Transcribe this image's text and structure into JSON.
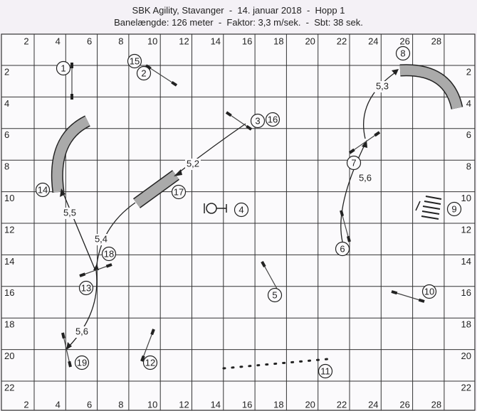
{
  "header": {
    "title": "SBK Agility, Stavanger  -  14. januar 2018  -  Hopp 1",
    "subtitle": "Banelængde: 126 meter  -  Faktor: 3,3 m/sek.  -  Sbt: 38 sek."
  },
  "grid": {
    "x_labels": [
      2,
      4,
      6,
      8,
      10,
      12,
      14,
      16,
      18,
      20,
      22,
      24,
      26,
      28
    ],
    "y_labels": [
      2,
      4,
      6,
      8,
      10,
      12,
      14,
      16,
      18,
      20,
      22
    ]
  },
  "obstacles": [
    "1",
    "15",
    "2",
    "3",
    "16",
    "14",
    "17",
    "4",
    "18",
    "13",
    "5",
    "19",
    "12",
    "11",
    "7",
    "6",
    "8",
    "9",
    "10"
  ],
  "distances": [
    "5,3",
    "5,2",
    "5,6",
    "5,5",
    "5,4",
    "5,6"
  ]
}
